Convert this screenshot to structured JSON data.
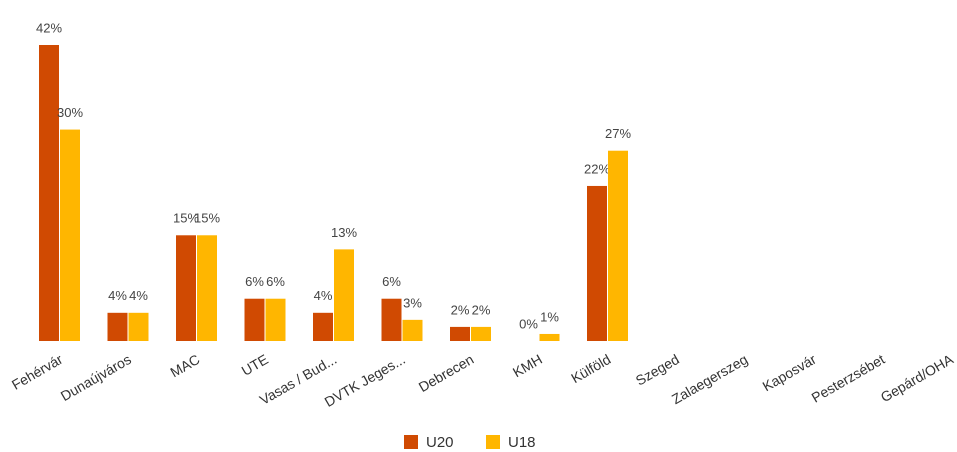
{
  "chart_data": {
    "type": "bar",
    "categories": [
      "Fehérvár",
      "Dunaújváros",
      "MAC",
      "UTE",
      "Vasas / Bud...",
      "DVTK Jeges...",
      "Debrecen",
      "KMH",
      "Külföld",
      "Szeged",
      "Zalaegerszeg",
      "Kaposvár",
      "Pesterzsébet",
      "Gepárd/OHA"
    ],
    "series": [
      {
        "name": "U20",
        "color": "#d04a02",
        "values": [
          42,
          4,
          15,
          6,
          4,
          6,
          2,
          0,
          22,
          null,
          null,
          null,
          null,
          null
        ],
        "value_labels": [
          "42%",
          "4%",
          "15%",
          "6%",
          "4%",
          "6%",
          "2%",
          "0%",
          "22%",
          null,
          null,
          null,
          null,
          null
        ]
      },
      {
        "name": "U18",
        "color": "#ffb600",
        "values": [
          30,
          4,
          15,
          6,
          13,
          3,
          2,
          1,
          27,
          null,
          null,
          null,
          null,
          null
        ],
        "value_labels": [
          "30%",
          "4%",
          "15%",
          "6%",
          "13%",
          "3%",
          "2%",
          "1%",
          "27%",
          null,
          null,
          null,
          null,
          null
        ]
      }
    ],
    "legend": "bottom"
  }
}
